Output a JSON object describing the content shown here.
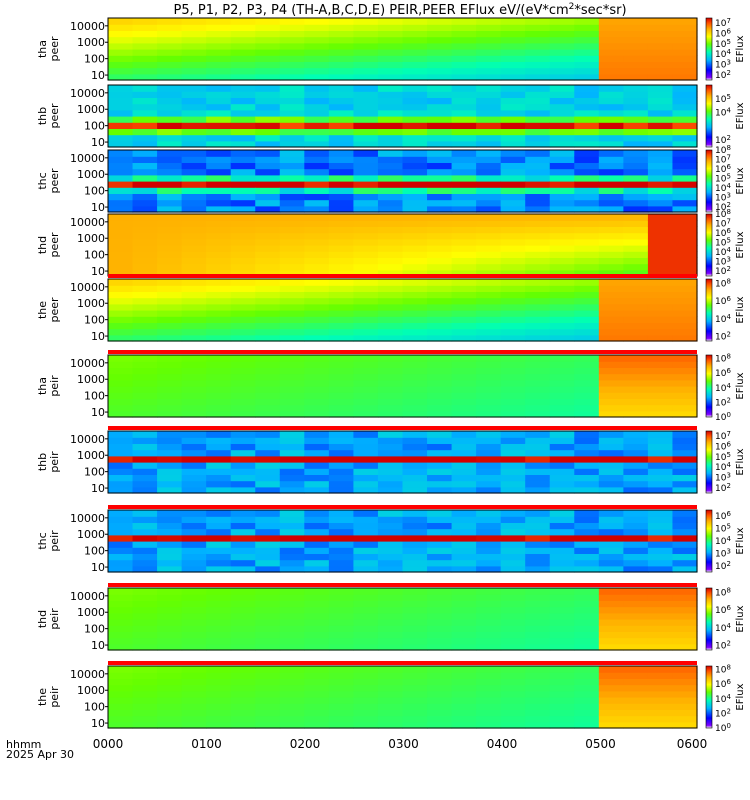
{
  "title_main": "P5, P1, P2, P3, P4 (TH-A,B,C,D,E) PEIR,PEER EFlux eV/(eV*cm",
  "title_sup": "2",
  "title_tail": "*sec*sr)",
  "x_axis": {
    "ticks": [
      "0000",
      "0100",
      "0200",
      "0300",
      "0400",
      "0500",
      "0600"
    ],
    "label_line1": "hhmm",
    "label_line2": "2025 Apr 30"
  },
  "colorbar_label": "EFlux",
  "chart_data": {
    "type": "heatmap",
    "x": {
      "unit": "hhmm",
      "range": [
        "0000",
        "0600"
      ]
    },
    "y": {
      "unit": "eV",
      "scale": "log",
      "range": [
        5,
        30000
      ]
    },
    "panels": [
      {
        "probe": "tha",
        "species": "peer",
        "ylabel": [
          "tha",
          "peer"
        ],
        "ytick_labels": [
          "10000",
          "1000",
          "100",
          "10"
        ],
        "cbar_ticks": [
          "10^7",
          "10^6",
          "10^5",
          "10^4",
          "10^3",
          "10^2"
        ],
        "cbar_range_log": [
          1.5,
          7.5
        ],
        "status_bar": false
      },
      {
        "probe": "thb",
        "species": "peer",
        "ylabel": [
          "thb",
          "peer"
        ],
        "ytick_labels": [
          "10000",
          "1000",
          "100",
          "10"
        ],
        "cbar_ticks": [
          "10^5",
          "10^4",
          "10^2"
        ],
        "cbar_range_log": [
          1.5,
          6
        ],
        "status_bar": false
      },
      {
        "probe": "thc",
        "species": "peer",
        "ylabel": [
          "thc",
          "peer"
        ],
        "ytick_labels": [
          "10000",
          "1000",
          "100",
          "10"
        ],
        "cbar_ticks": [
          "10^8",
          "10^7",
          "10^6",
          "10^5",
          "10^4",
          "10^3",
          "10^2"
        ],
        "cbar_range_log": [
          1.5,
          8
        ],
        "status_bar": false
      },
      {
        "probe": "thd",
        "species": "peer",
        "ylabel": [
          "thd",
          "peer"
        ],
        "ytick_labels": [
          "10000",
          "1000",
          "100",
          "10"
        ],
        "cbar_ticks": [
          "10^8",
          "10^7",
          "10^6",
          "10^5",
          "10^4",
          "10^3",
          "10^2"
        ],
        "cbar_range_log": [
          1.5,
          8
        ],
        "status_bar": false
      },
      {
        "probe": "the",
        "species": "peer",
        "ylabel": [
          "the",
          "peer"
        ],
        "ytick_labels": [
          "10000",
          "1000",
          "100",
          "10"
        ],
        "cbar_ticks": [
          "10^8",
          "10^6",
          "10^4",
          "10^2"
        ],
        "cbar_range_log": [
          1.5,
          8.5
        ],
        "status_bar": true
      },
      {
        "probe": "tha",
        "species": "peir",
        "ylabel": [
          "tha",
          "peir"
        ],
        "ytick_labels": [
          "10000",
          "1000",
          "100",
          "10"
        ],
        "cbar_ticks": [
          "10^8",
          "10^6",
          "10^4",
          "10^2",
          "10^0"
        ],
        "cbar_range_log": [
          0,
          8.5
        ],
        "status_bar": true
      },
      {
        "probe": "thb",
        "species": "peir",
        "ylabel": [
          "thb",
          "peir"
        ],
        "ytick_labels": [
          "10000",
          "1000",
          "100",
          "10"
        ],
        "cbar_ticks": [
          "10^7",
          "10^6",
          "10^5",
          "10^4",
          "10^3",
          "10^2"
        ],
        "cbar_range_log": [
          1.5,
          7.5
        ],
        "status_bar": true
      },
      {
        "probe": "thc",
        "species": "peir",
        "ylabel": [
          "thc",
          "peir"
        ],
        "ytick_labels": [
          "10000",
          "1000",
          "100",
          "10"
        ],
        "cbar_ticks": [
          "10^6",
          "10^5",
          "10^4",
          "10^3",
          "10^2"
        ],
        "cbar_range_log": [
          1.5,
          6.5
        ],
        "status_bar": true
      },
      {
        "probe": "thd",
        "species": "peir",
        "ylabel": [
          "thd",
          "peir"
        ],
        "ytick_labels": [
          "10000",
          "1000",
          "100",
          "10"
        ],
        "cbar_ticks": [
          "10^8",
          "10^6",
          "10^4",
          "10^2"
        ],
        "cbar_range_log": [
          1.5,
          8.5
        ],
        "status_bar": true
      },
      {
        "probe": "the",
        "species": "peir",
        "ylabel": [
          "the",
          "peir"
        ],
        "ytick_labels": [
          "10000",
          "1000",
          "100",
          "10"
        ],
        "cbar_ticks": [
          "10^8",
          "10^6",
          "10^4",
          "10^2",
          "10^0"
        ],
        "cbar_range_log": [
          0,
          8.5
        ],
        "status_bar": true
      }
    ]
  },
  "colors": {
    "colormap": [
      "#ffffff",
      "#7f00ff",
      "#0000ff",
      "#00b4ff",
      "#00ffb4",
      "#64ff00",
      "#ffff00",
      "#ffb000",
      "#ff5000",
      "#d20000"
    ],
    "status_red": "#ff0000",
    "status_yellow": "#ffff00",
    "status_black": "#000000",
    "frame": "#000000"
  }
}
